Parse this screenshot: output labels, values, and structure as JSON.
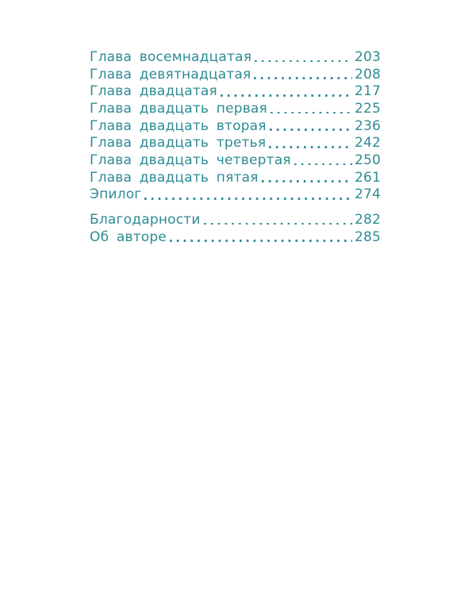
{
  "page": {
    "background": "#ffffff",
    "text_color": "#2e8b94"
  },
  "toc": {
    "chapters": [
      {
        "title": "Глава восемнадцатая",
        "page": "203"
      },
      {
        "title": "Глава девятнадцатая",
        "page": "208"
      },
      {
        "title": "Глава двадцатая",
        "page": "217"
      },
      {
        "title": "Глава двадцать первая",
        "page": "225"
      },
      {
        "title": "Глава двадцать вторая",
        "page": "236"
      },
      {
        "title": "Глава двадцать третья",
        "page": "242"
      },
      {
        "title": "Глава двадцать четвертая",
        "page": "250"
      },
      {
        "title": "Глава двадцать пятая",
        "page": "261"
      },
      {
        "title": "Эпилог",
        "page": "274"
      }
    ],
    "back_matter": [
      {
        "title": "Благодарности",
        "page": "282"
      },
      {
        "title": "Об авторе",
        "page": "285"
      }
    ]
  }
}
